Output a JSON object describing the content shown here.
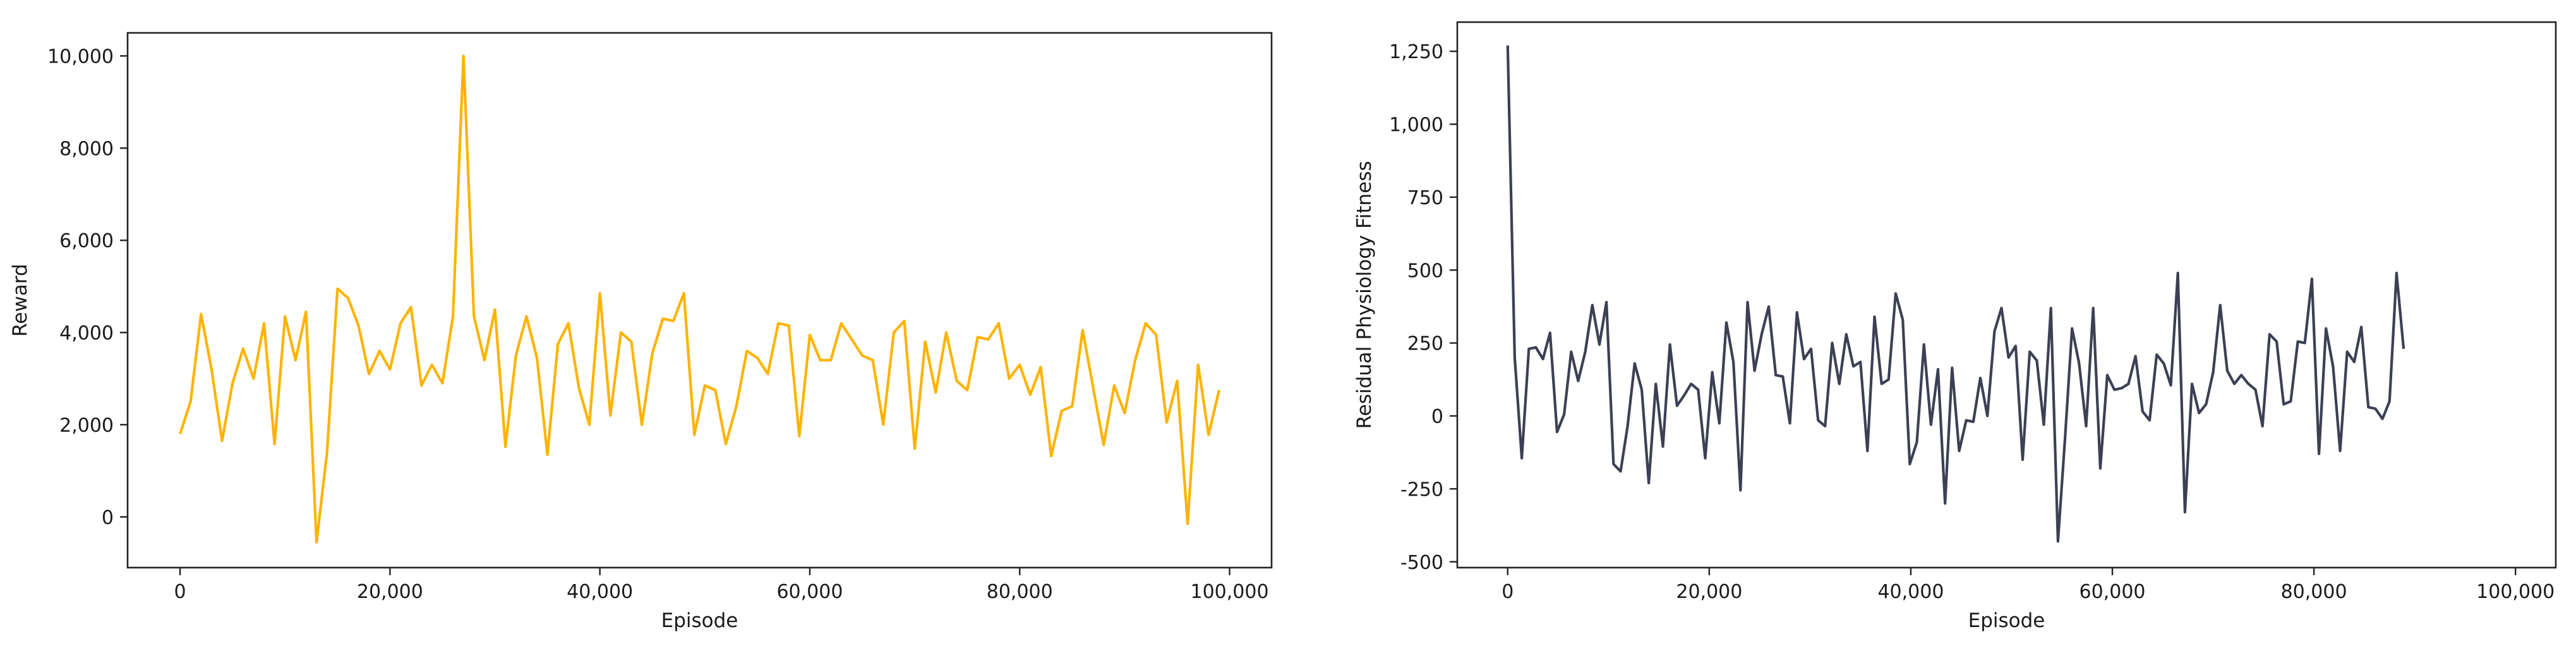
{
  "chart_data": [
    {
      "type": "line",
      "title": "",
      "xlabel": "Episode",
      "ylabel": "Reward",
      "xlim": [
        -5000,
        104000
      ],
      "ylim": [
        -1100,
        10500
      ],
      "xticks": [
        0,
        20000,
        40000,
        60000,
        80000,
        100000
      ],
      "xtick_labels": [
        "0",
        "20,000",
        "40,000",
        "60,000",
        "80,000",
        "100,000"
      ],
      "yticks": [
        0,
        2000,
        4000,
        6000,
        8000,
        10000
      ],
      "ytick_labels": [
        "0",
        "2,000",
        "4,000",
        "6,000",
        "8,000",
        "10,000"
      ],
      "grid": false,
      "color": "#ffb300",
      "x_start": 0,
      "x_step": 1000,
      "series": [
        {
          "values": [
            1800,
            2500,
            4400,
            3200,
            1650,
            2900,
            3650,
            3000,
            4200,
            1580,
            4350,
            3400,
            4450,
            -550,
            1400,
            4950,
            4750,
            4150,
            3100,
            3600,
            3200,
            4200,
            4550,
            2850,
            3300,
            2900,
            4350,
            10000,
            4350,
            3400,
            4500,
            1520,
            3500,
            4350,
            3450,
            1350,
            3750,
            4200,
            2800,
            2000,
            4850,
            2200,
            4000,
            3800,
            2000,
            3550,
            4300,
            4250,
            4850,
            1780,
            2850,
            2750,
            1580,
            2400,
            3600,
            3450,
            3100,
            4200,
            4150,
            1750,
            3950,
            3400,
            3400,
            4200,
            3850,
            3500,
            3400,
            2000,
            4000,
            4250,
            1480,
            3800,
            2700,
            4000,
            2950,
            2750,
            3900,
            3850,
            4200,
            3000,
            3300,
            2650,
            3250,
            1320,
            2300,
            2400,
            4050,
            2800,
            1560,
            2850,
            2250,
            3400,
            4200,
            3950,
            2050,
            2950,
            -150,
            3300,
            1780,
            2750
          ]
        }
      ]
    },
    {
      "type": "line",
      "title": "",
      "xlabel": "Episode",
      "ylabel": "Residual Physiology Fitness",
      "xlim": [
        -5000,
        104000
      ],
      "ylim": [
        -520,
        1350
      ],
      "xticks": [
        0,
        20000,
        40000,
        60000,
        80000,
        100000
      ],
      "xtick_labels": [
        "0",
        "20,000",
        "40,000",
        "60,000",
        "80,000",
        "100,000"
      ],
      "yticks": [
        -500,
        -250,
        0,
        250,
        500,
        750,
        1000,
        1250
      ],
      "ytick_labels": [
        "-500",
        "-250",
        "0",
        "250",
        "500",
        "750",
        "1,000",
        "1,250"
      ],
      "grid": false,
      "color": "#3d4054",
      "x_start": 0,
      "x_step": 700,
      "series": [
        {
          "values": [
            1270,
            200,
            -145,
            230,
            235,
            195,
            285,
            -55,
            5,
            220,
            120,
            220,
            380,
            245,
            390,
            -165,
            -190,
            -35,
            180,
            90,
            -230,
            110,
            -105,
            245,
            35,
            70,
            110,
            90,
            -145,
            150,
            -25,
            320,
            185,
            -255,
            390,
            155,
            280,
            375,
            140,
            135,
            -25,
            355,
            195,
            230,
            -15,
            -35,
            250,
            110,
            280,
            170,
            185,
            -120,
            340,
            110,
            125,
            420,
            330,
            -165,
            -90,
            245,
            -30,
            160,
            -300,
            165,
            -120,
            -15,
            -20,
            130,
            0,
            290,
            370,
            200,
            240,
            -150,
            220,
            190,
            -30,
            370,
            -430,
            -80,
            300,
            180,
            -35,
            370,
            -180,
            140,
            90,
            95,
            110,
            205,
            15,
            -15,
            210,
            180,
            105,
            490,
            -330,
            110,
            10,
            40,
            150,
            380,
            155,
            110,
            140,
            110,
            90,
            -35,
            280,
            255,
            40,
            50,
            255,
            250,
            470,
            -130,
            300,
            170,
            -120,
            220,
            185,
            305,
            30,
            25,
            -10,
            50,
            490,
            230
          ]
        }
      ]
    }
  ]
}
